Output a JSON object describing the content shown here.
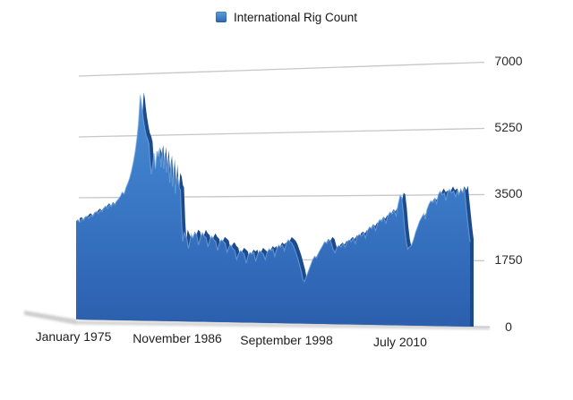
{
  "legend": {
    "label": "International Rig Count"
  },
  "chart_data": {
    "type": "area",
    "title": "International Rig Count",
    "legend_position": "top",
    "style": "3d-perspective-area",
    "grid": "horizontal",
    "ylim": [
      0,
      7000
    ],
    "y_axis_side": "right",
    "y_tick_labels": [
      "7000",
      "5250",
      "3500",
      "1750",
      "0"
    ],
    "y_tick_values": [
      7000,
      5250,
      3500,
      1750,
      0
    ],
    "x_tick_labels": [
      "January 1975",
      "November 1986",
      "September 1998",
      "July 2010"
    ],
    "x_unit": "decimal_year",
    "colors": {
      "area_top": "#4a8bd2",
      "area_mid": "#3a78c6",
      "area_bottom": "#2b5fae",
      "area_back": "#1c4a8c",
      "area_highlight": "#7fb0e4",
      "gridline": "#c7c7c7",
      "shadow": "#9e9e9e",
      "text": "#222222",
      "legend_swatch_top": "#5ba0dd",
      "legend_swatch_bottom": "#2d67b1"
    },
    "series": [
      {
        "name": "International Rig Count",
        "points": [
          [
            1975.0,
            2830
          ],
          [
            1975.2,
            2870
          ],
          [
            1975.4,
            2800
          ],
          [
            1975.6,
            2890
          ],
          [
            1975.8,
            2850
          ],
          [
            1976.0,
            2940
          ],
          [
            1976.2,
            2980
          ],
          [
            1976.4,
            2910
          ],
          [
            1976.6,
            3000
          ],
          [
            1976.8,
            2960
          ],
          [
            1977.0,
            3060
          ],
          [
            1977.2,
            3110
          ],
          [
            1977.4,
            3050
          ],
          [
            1977.6,
            3140
          ],
          [
            1977.8,
            3090
          ],
          [
            1978.0,
            3200
          ],
          [
            1978.2,
            3260
          ],
          [
            1978.4,
            3190
          ],
          [
            1978.6,
            3290
          ],
          [
            1978.8,
            3240
          ],
          [
            1979.0,
            3330
          ],
          [
            1979.2,
            3290
          ],
          [
            1979.4,
            3400
          ],
          [
            1979.6,
            3460
          ],
          [
            1979.8,
            3540
          ],
          [
            1980.0,
            3650
          ],
          [
            1980.2,
            3600
          ],
          [
            1980.4,
            3780
          ],
          [
            1980.6,
            3900
          ],
          [
            1980.8,
            4050
          ],
          [
            1981.0,
            4250
          ],
          [
            1981.2,
            4500
          ],
          [
            1981.4,
            4800
          ],
          [
            1981.6,
            5200
          ],
          [
            1981.75,
            5600
          ],
          [
            1981.85,
            6000
          ],
          [
            1981.95,
            6400
          ],
          [
            1982.05,
            6250
          ],
          [
            1982.15,
            6000
          ],
          [
            1982.3,
            5700
          ],
          [
            1982.45,
            5450
          ],
          [
            1982.6,
            5250
          ],
          [
            1982.75,
            5150
          ],
          [
            1982.9,
            5000
          ],
          [
            1983.0,
            4600
          ],
          [
            1983.15,
            4150
          ],
          [
            1983.3,
            4400
          ],
          [
            1983.45,
            4750
          ],
          [
            1983.6,
            4300
          ],
          [
            1983.75,
            4800
          ],
          [
            1983.9,
            4650
          ],
          [
            1984.05,
            4900
          ],
          [
            1984.2,
            4350
          ],
          [
            1984.35,
            4850
          ],
          [
            1984.5,
            4300
          ],
          [
            1984.65,
            4750
          ],
          [
            1984.8,
            4200
          ],
          [
            1985.0,
            4600
          ],
          [
            1985.15,
            3900
          ],
          [
            1985.3,
            4500
          ],
          [
            1985.45,
            3800
          ],
          [
            1985.6,
            4350
          ],
          [
            1985.75,
            3600
          ],
          [
            1985.9,
            4100
          ],
          [
            1986.05,
            4000
          ],
          [
            1986.2,
            3750
          ],
          [
            1986.3,
            3700
          ],
          [
            1986.45,
            2700
          ],
          [
            1986.55,
            2250
          ],
          [
            1986.7,
            2500
          ],
          [
            1986.85,
            2400
          ],
          [
            1987.0,
            2300
          ],
          [
            1987.15,
            2050
          ],
          [
            1987.3,
            2250
          ],
          [
            1987.45,
            2450
          ],
          [
            1987.6,
            2350
          ],
          [
            1987.8,
            2500
          ],
          [
            1988.0,
            2450
          ],
          [
            1988.2,
            2150
          ],
          [
            1988.4,
            2350
          ],
          [
            1988.6,
            2500
          ],
          [
            1988.8,
            2400
          ],
          [
            1989.0,
            2350
          ],
          [
            1989.2,
            2100
          ],
          [
            1989.4,
            2300
          ],
          [
            1989.6,
            2400
          ],
          [
            1989.8,
            2300
          ],
          [
            1990.0,
            2250
          ],
          [
            1990.2,
            2000
          ],
          [
            1990.4,
            2200
          ],
          [
            1990.6,
            2300
          ],
          [
            1990.8,
            2250
          ],
          [
            1991.0,
            2200
          ],
          [
            1991.2,
            1950
          ],
          [
            1991.4,
            2100
          ],
          [
            1991.6,
            2150
          ],
          [
            1991.8,
            2050
          ],
          [
            1992.0,
            2000
          ],
          [
            1992.2,
            1750
          ],
          [
            1992.4,
            1900
          ],
          [
            1992.6,
            2000
          ],
          [
            1992.8,
            1950
          ],
          [
            1993.0,
            1900
          ],
          [
            1993.2,
            1650
          ],
          [
            1993.4,
            1850
          ],
          [
            1993.6,
            1950
          ],
          [
            1993.8,
            1900
          ],
          [
            1994.0,
            1950
          ],
          [
            1994.2,
            1700
          ],
          [
            1994.4,
            1900
          ],
          [
            1994.6,
            2000
          ],
          [
            1994.8,
            1950
          ],
          [
            1995.0,
            1900
          ],
          [
            1995.2,
            1750
          ],
          [
            1995.4,
            1950
          ],
          [
            1995.6,
            2050
          ],
          [
            1995.8,
            2000
          ],
          [
            1996.0,
            2050
          ],
          [
            1996.2,
            1850
          ],
          [
            1996.4,
            2050
          ],
          [
            1996.6,
            2150
          ],
          [
            1996.8,
            2100
          ],
          [
            1997.0,
            2150
          ],
          [
            1997.2,
            2000
          ],
          [
            1997.4,
            2200
          ],
          [
            1997.6,
            2300
          ],
          [
            1997.8,
            2250
          ],
          [
            1998.0,
            2200
          ],
          [
            1998.2,
            2100
          ],
          [
            1998.4,
            1950
          ],
          [
            1998.6,
            1800
          ],
          [
            1998.8,
            1600
          ],
          [
            1999.0,
            1400
          ],
          [
            1999.15,
            1200
          ],
          [
            1999.3,
            1150
          ],
          [
            1999.5,
            1300
          ],
          [
            1999.7,
            1450
          ],
          [
            1999.9,
            1600
          ],
          [
            2000.1,
            1750
          ],
          [
            2000.3,
            1850
          ],
          [
            2000.5,
            1800
          ],
          [
            2000.7,
            1950
          ],
          [
            2000.9,
            2050
          ],
          [
            2001.1,
            2150
          ],
          [
            2001.3,
            2250
          ],
          [
            2001.5,
            2200
          ],
          [
            2001.7,
            2300
          ],
          [
            2001.9,
            2250
          ],
          [
            2002.1,
            2050
          ],
          [
            2002.3,
            1950
          ],
          [
            2002.5,
            2100
          ],
          [
            2002.7,
            2150
          ],
          [
            2002.9,
            2100
          ],
          [
            2003.1,
            2200
          ],
          [
            2003.3,
            2100
          ],
          [
            2003.5,
            2250
          ],
          [
            2003.7,
            2300
          ],
          [
            2003.9,
            2250
          ],
          [
            2004.1,
            2350
          ],
          [
            2004.3,
            2200
          ],
          [
            2004.5,
            2400
          ],
          [
            2004.7,
            2450
          ],
          [
            2004.9,
            2400
          ],
          [
            2005.1,
            2500
          ],
          [
            2005.3,
            2350
          ],
          [
            2005.5,
            2550
          ],
          [
            2005.7,
            2650
          ],
          [
            2005.9,
            2600
          ],
          [
            2006.1,
            2700
          ],
          [
            2006.3,
            2550
          ],
          [
            2006.5,
            2750
          ],
          [
            2006.7,
            2850
          ],
          [
            2006.9,
            2800
          ],
          [
            2007.1,
            2900
          ],
          [
            2007.3,
            2750
          ],
          [
            2007.5,
            2950
          ],
          [
            2007.7,
            3050
          ],
          [
            2007.9,
            3000
          ],
          [
            2008.1,
            3100
          ],
          [
            2008.3,
            2950
          ],
          [
            2008.5,
            3250
          ],
          [
            2008.7,
            3500
          ],
          [
            2008.85,
            3450
          ],
          [
            2009.0,
            3100
          ],
          [
            2009.15,
            2600
          ],
          [
            2009.3,
            2250
          ],
          [
            2009.45,
            2050
          ],
          [
            2009.6,
            2100
          ],
          [
            2009.8,
            2150
          ],
          [
            2010.0,
            2300
          ],
          [
            2010.2,
            2500
          ],
          [
            2010.4,
            2650
          ],
          [
            2010.6,
            2800
          ],
          [
            2010.8,
            2900
          ],
          [
            2011.0,
            3000
          ],
          [
            2011.15,
            2850
          ],
          [
            2011.3,
            3100
          ],
          [
            2011.5,
            3250
          ],
          [
            2011.7,
            3350
          ],
          [
            2011.9,
            3300
          ],
          [
            2012.1,
            3400
          ],
          [
            2012.25,
            3250
          ],
          [
            2012.4,
            3500
          ],
          [
            2012.6,
            3600
          ],
          [
            2012.8,
            3500
          ],
          [
            2013.0,
            3550
          ],
          [
            2013.15,
            3350
          ],
          [
            2013.3,
            3550
          ],
          [
            2013.5,
            3650
          ],
          [
            2013.7,
            3550
          ],
          [
            2013.9,
            3600
          ],
          [
            2014.1,
            3450
          ],
          [
            2014.25,
            3600
          ],
          [
            2014.4,
            3500
          ],
          [
            2014.6,
            3650
          ],
          [
            2014.8,
            3550
          ],
          [
            2014.95,
            3670
          ],
          [
            2015.1,
            3250
          ],
          [
            2015.25,
            2850
          ],
          [
            2015.4,
            2450
          ],
          [
            2015.5,
            2250
          ]
        ]
      }
    ]
  }
}
